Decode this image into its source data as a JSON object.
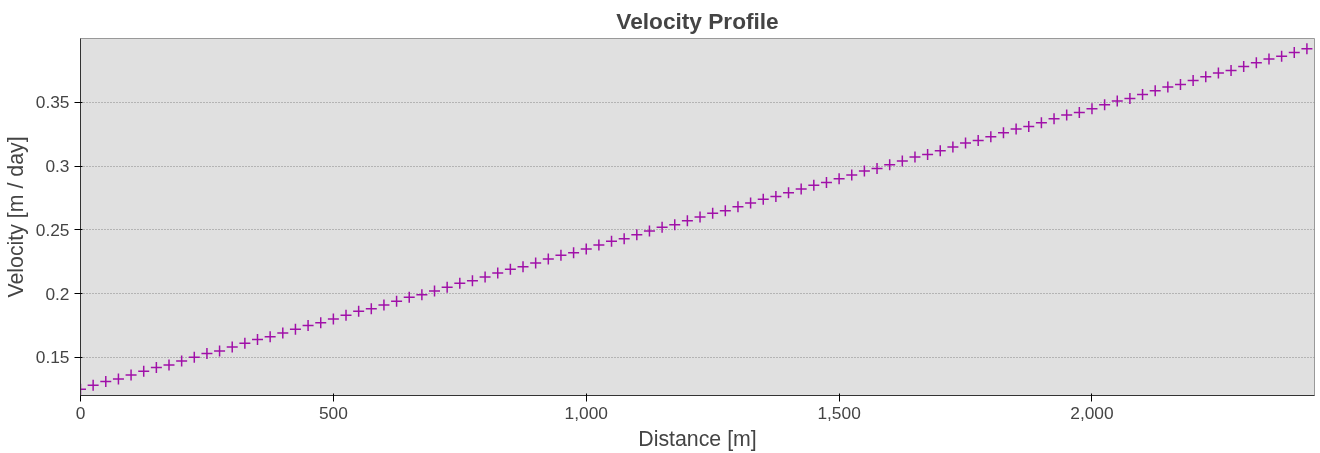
{
  "chart_data": {
    "type": "scatter",
    "title": "Velocity Profile",
    "xlabel": "Distance [m]",
    "ylabel": "Velocity [m / day]",
    "x": [
      0,
      25,
      50,
      75,
      100,
      125,
      150,
      175,
      200,
      225,
      250,
      275,
      300,
      325,
      350,
      375,
      400,
      425,
      450,
      475,
      500,
      525,
      550,
      575,
      600,
      625,
      650,
      675,
      700,
      725,
      750,
      775,
      800,
      825,
      850,
      875,
      900,
      925,
      950,
      975,
      1000,
      1025,
      1050,
      1075,
      1100,
      1125,
      1150,
      1175,
      1200,
      1225,
      1250,
      1275,
      1300,
      1325,
      1350,
      1375,
      1400,
      1425,
      1450,
      1475,
      1500,
      1525,
      1550,
      1575,
      1600,
      1625,
      1650,
      1675,
      1700,
      1725,
      1750,
      1775,
      1800,
      1825,
      1850,
      1875,
      1900,
      1925,
      1950,
      1975,
      2000,
      2025,
      2050,
      2075,
      2100,
      2125,
      2150,
      2175,
      2200,
      2225,
      2250,
      2275,
      2300,
      2325,
      2350,
      2375,
      2400,
      2425
    ],
    "series": [
      {
        "color": "#a010a8",
        "values": [
          0.125,
          0.128,
          0.131,
          0.133,
          0.136,
          0.139,
          0.142,
          0.144,
          0.147,
          0.15,
          0.153,
          0.155,
          0.158,
          0.161,
          0.164,
          0.166,
          0.169,
          0.172,
          0.175,
          0.177,
          0.18,
          0.183,
          0.186,
          0.188,
          0.191,
          0.194,
          0.197,
          0.199,
          0.202,
          0.205,
          0.208,
          0.21,
          0.213,
          0.216,
          0.219,
          0.221,
          0.224,
          0.227,
          0.23,
          0.232,
          0.235,
          0.238,
          0.241,
          0.243,
          0.246,
          0.249,
          0.252,
          0.254,
          0.257,
          0.26,
          0.263,
          0.265,
          0.268,
          0.271,
          0.274,
          0.276,
          0.279,
          0.282,
          0.285,
          0.287,
          0.29,
          0.293,
          0.296,
          0.298,
          0.301,
          0.304,
          0.307,
          0.309,
          0.312,
          0.315,
          0.318,
          0.32,
          0.323,
          0.326,
          0.329,
          0.331,
          0.334,
          0.337,
          0.34,
          0.342,
          0.345,
          0.348,
          0.351,
          0.353,
          0.356,
          0.359,
          0.362,
          0.364,
          0.367,
          0.37,
          0.373,
          0.375,
          0.378,
          0.381,
          0.384,
          0.386,
          0.389,
          0.392
        ]
      }
    ],
    "marker": "cross",
    "xlim": [
      0,
      2440
    ],
    "ylim": [
      0.12,
      0.4
    ],
    "xticks": [
      0,
      500,
      {
        "value": 1000,
        "label": "1,000"
      },
      {
        "value": 1500,
        "label": "1,500"
      },
      {
        "value": 2000,
        "label": "2,000"
      }
    ],
    "yticks": [
      0.15,
      0.2,
      0.25,
      0.3,
      0.35
    ],
    "grid": "y"
  }
}
